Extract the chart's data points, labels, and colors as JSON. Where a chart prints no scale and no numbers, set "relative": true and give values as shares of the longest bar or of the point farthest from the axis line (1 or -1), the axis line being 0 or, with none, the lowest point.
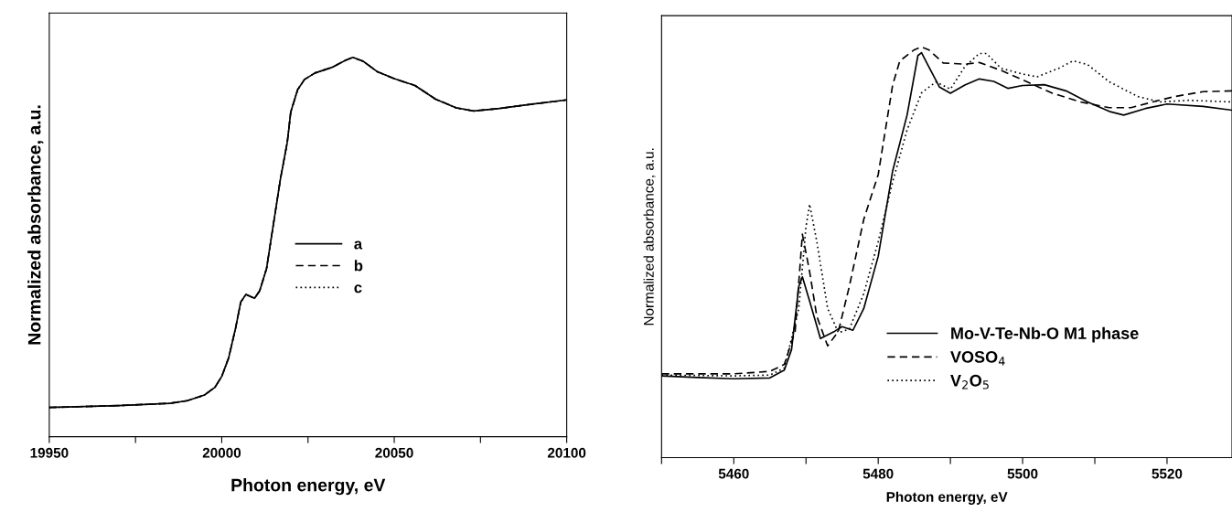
{
  "chart_data": [
    {
      "type": "line",
      "xlabel": "Photon energy, eV",
      "ylabel": "Normalized absorbance, a.u.",
      "relative": true,
      "xlim": [
        19950,
        20100
      ],
      "xticks": [
        19950,
        {
          "value": 19975,
          "label": null
        },
        20000,
        {
          "value": 20025,
          "label": null
        },
        20050,
        {
          "value": 20075,
          "label": null
        },
        20100
      ],
      "legend": "center",
      "grid": false,
      "marker": "none",
      "x": [
        19950,
        19970,
        19985,
        19990,
        19995,
        19998,
        20000,
        20002,
        20004,
        20005.5,
        20007,
        20009.5,
        20011,
        20013,
        20015,
        20017,
        20019,
        20020,
        20022,
        20024,
        20027,
        20032,
        20036,
        20038,
        20041,
        20045,
        20050,
        20056,
        20062,
        20068,
        20073,
        20080,
        20090,
        20100
      ],
      "series": [
        {
          "name": "a",
          "color": "#000000",
          "line_style": "solid",
          "values": [
            0.077,
            0.082,
            0.088,
            0.095,
            0.11,
            0.13,
            0.159,
            0.208,
            0.286,
            0.355,
            0.375,
            0.365,
            0.385,
            0.444,
            0.562,
            0.679,
            0.777,
            0.856,
            0.915,
            0.942,
            0.959,
            0.974,
            0.993,
            1.0,
            0.99,
            0.963,
            0.944,
            0.926,
            0.89,
            0.867,
            0.859,
            0.865,
            0.877,
            0.888
          ]
        },
        {
          "name": "b",
          "color": "#000000",
          "line_style": "dashed",
          "values": [
            0.077,
            0.082,
            0.088,
            0.095,
            0.11,
            0.13,
            0.159,
            0.208,
            0.286,
            0.355,
            0.375,
            0.365,
            0.385,
            0.444,
            0.562,
            0.679,
            0.777,
            0.856,
            0.915,
            0.942,
            0.959,
            0.974,
            0.993,
            1.0,
            0.99,
            0.963,
            0.944,
            0.926,
            0.89,
            0.867,
            0.859,
            0.865,
            0.877,
            0.888
          ]
        },
        {
          "name": "c",
          "color": "#000000",
          "line_style": "dotted",
          "values": [
            0.077,
            0.082,
            0.088,
            0.095,
            0.11,
            0.13,
            0.159,
            0.208,
            0.286,
            0.355,
            0.375,
            0.365,
            0.385,
            0.444,
            0.562,
            0.679,
            0.777,
            0.856,
            0.915,
            0.942,
            0.959,
            0.974,
            0.993,
            1.0,
            0.99,
            0.963,
            0.944,
            0.926,
            0.89,
            0.867,
            0.859,
            0.865,
            0.877,
            0.888
          ]
        }
      ]
    },
    {
      "type": "line",
      "xlabel": "Photon energy, eV",
      "ylabel": "Normalized absorbance, a.u.",
      "relative": true,
      "xlim": [
        5450,
        5529
      ],
      "xticks": [
        {
          "value": 5450,
          "label": null
        },
        5460,
        {
          "value": 5470,
          "label": null
        },
        5480,
        {
          "value": 5490,
          "label": null
        },
        5500,
        {
          "value": 5510,
          "label": null
        },
        5520
      ],
      "legend": "bottom",
      "grid": false,
      "marker": "none",
      "series": [
        {
          "name": "Mo-V-Te-Nb-O M1 phase",
          "color": "#000000",
          "line_style": "solid",
          "x": [
            5450,
            5455,
            5460,
            5465,
            5467,
            5468,
            5469,
            5469.5,
            5470.5,
            5472,
            5474,
            5475,
            5476.5,
            5478,
            5480,
            5482,
            5484,
            5485.5,
            5486,
            5487,
            5488.5,
            5490,
            5492,
            5494,
            5496,
            5498,
            5500,
            5503,
            5506,
            5509,
            5512,
            5514,
            5517,
            5520,
            5525,
            5529
          ],
          "values": [
            0.199,
            0.195,
            0.192,
            0.194,
            0.213,
            0.263,
            0.417,
            0.44,
            0.381,
            0.29,
            0.308,
            0.319,
            0.31,
            0.363,
            0.49,
            0.698,
            0.834,
            0.979,
            0.986,
            0.952,
            0.902,
            0.887,
            0.907,
            0.922,
            0.916,
            0.899,
            0.906,
            0.908,
            0.893,
            0.866,
            0.843,
            0.834,
            0.85,
            0.861,
            0.855,
            0.846
          ]
        },
        {
          "name": "VOSO$_{4}$",
          "color": "#000000",
          "line_style": "dashed",
          "x": [
            5450,
            5460,
            5465,
            5467,
            5468.5,
            5469.5,
            5470.5,
            5471.5,
            5473,
            5474.5,
            5476,
            5478,
            5480,
            5482,
            5483,
            5485,
            5486,
            5487,
            5489,
            5492,
            5494,
            5497,
            5500,
            5504,
            5508,
            5512,
            5515,
            5518,
            5521,
            5525,
            5529
          ],
          "values": [
            0.204,
            0.204,
            0.21,
            0.227,
            0.308,
            0.544,
            0.453,
            0.344,
            0.272,
            0.308,
            0.417,
            0.58,
            0.689,
            0.907,
            0.966,
            0.993,
            1.0,
            0.993,
            0.961,
            0.958,
            0.962,
            0.943,
            0.92,
            0.888,
            0.866,
            0.852,
            0.852,
            0.866,
            0.879,
            0.891,
            0.893
          ]
        },
        {
          "name": "V$_{2}$O$_{5}$",
          "color": "#000000",
          "line_style": "dotted",
          "x": [
            5450,
            5460,
            5465,
            5467,
            5469,
            5470,
            5470.5,
            5471.5,
            5473,
            5474.5,
            5476,
            5478,
            5480,
            5482,
            5484,
            5486,
            5488,
            5490,
            5492,
            5494,
            5495,
            5497,
            5500,
            5502,
            5505,
            5507,
            5509,
            5512,
            5516,
            5519,
            5523,
            5529
          ],
          "values": [
            0.201,
            0.199,
            0.201,
            0.218,
            0.363,
            0.562,
            0.617,
            0.526,
            0.363,
            0.304,
            0.313,
            0.399,
            0.526,
            0.671,
            0.798,
            0.888,
            0.915,
            0.897,
            0.952,
            0.984,
            0.984,
            0.948,
            0.934,
            0.927,
            0.948,
            0.966,
            0.957,
            0.915,
            0.879,
            0.866,
            0.87,
            0.866
          ]
        }
      ]
    }
  ]
}
